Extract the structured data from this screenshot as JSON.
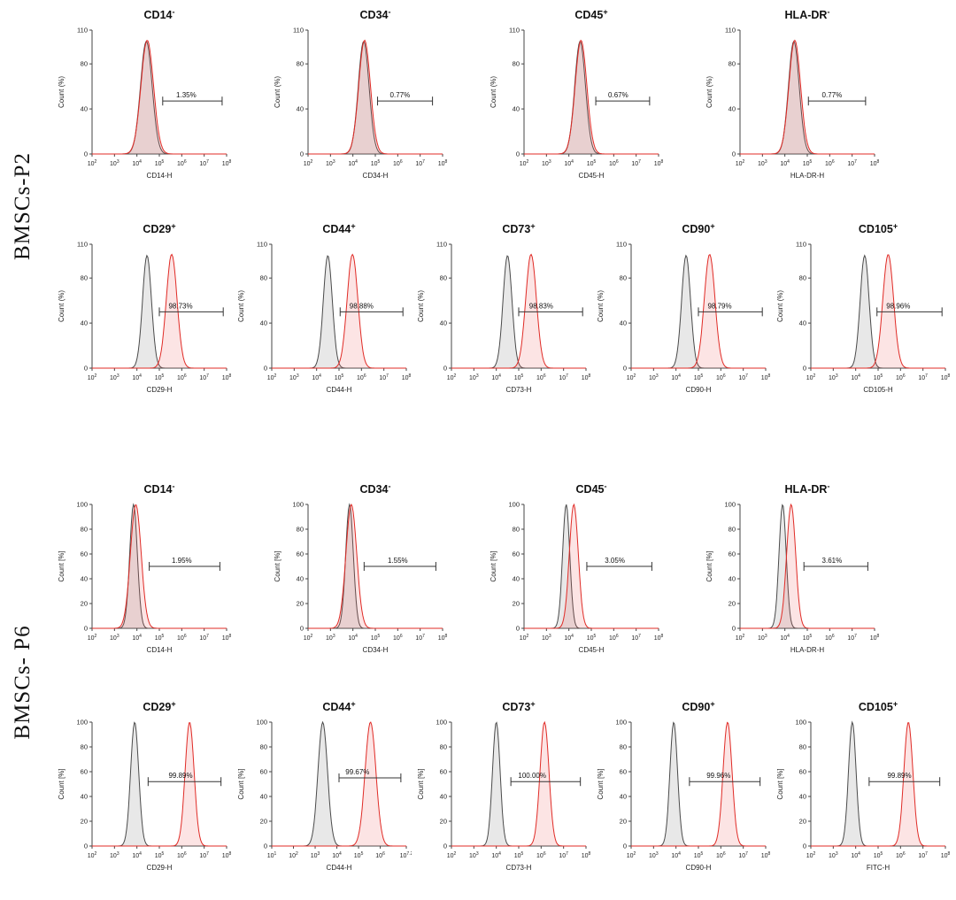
{
  "figure": {
    "group_labels": [
      "BMSCs-P2",
      "BMSCs- P6"
    ]
  },
  "chart_data": {
    "type": "histogram",
    "description": "Flow cytometry surface marker histograms of bone marrow mesenchymal stem cells at passage 2 (P2) and passage 6 (P6); x axes are log10 fluorescence intensity, y axes are normalized count percent; gray curve = control, red curve = stained sample; bracket shows gated percentage.",
    "x_scale": "log10",
    "styles": {
      "control": {
        "stroke": "#4a4a4a",
        "fill": "rgba(130,130,130,0.18)"
      },
      "sample": {
        "stroke": "#e02b26",
        "fill": "rgba(235,90,90,0.16)"
      },
      "gate": "#333333"
    },
    "groups": [
      {
        "label": "BMSCs-P2",
        "rows": [
          {
            "y_label": "Count (%)",
            "y_max": 110,
            "y_ticks": [
              0,
              40,
              80,
              110
            ],
            "x_ticks_default": [
              2,
              3,
              4,
              5,
              6,
              7,
              8
            ],
            "plots": [
              {
                "marker": "CD14",
                "sign": "-",
                "x_label": "CD14-H",
                "series": [
                  {
                    "role": "control",
                    "center": 4.42,
                    "sigma": 0.26,
                    "height": 100
                  },
                  {
                    "role": "sample",
                    "center": 4.46,
                    "sigma": 0.28,
                    "height": 101
                  }
                ],
                "gate": {
                  "from": 5.15,
                  "to": 7.8,
                  "y": 47,
                  "label_x": 6.2,
                  "label": "1.35%"
                }
              },
              {
                "marker": "CD34",
                "sign": "-",
                "x_label": "CD34-H",
                "series": [
                  {
                    "role": "control",
                    "center": 4.48,
                    "sigma": 0.24,
                    "height": 100
                  },
                  {
                    "role": "sample",
                    "center": 4.52,
                    "sigma": 0.26,
                    "height": 101
                  }
                ],
                "gate": {
                  "from": 5.1,
                  "to": 7.55,
                  "y": 47,
                  "label_x": 6.1,
                  "label": "0.77%"
                }
              },
              {
                "marker": "CD45",
                "sign": "+",
                "x_label": "CD45-H",
                "series": [
                  {
                    "role": "control",
                    "center": 4.5,
                    "sigma": 0.24,
                    "height": 100
                  },
                  {
                    "role": "sample",
                    "center": 4.54,
                    "sigma": 0.26,
                    "height": 101
                  }
                ],
                "gate": {
                  "from": 5.2,
                  "to": 7.6,
                  "y": 47,
                  "label_x": 6.2,
                  "label": "0.67%"
                }
              },
              {
                "marker": "HLA-DR",
                "sign": "-",
                "x_label": "HLA-DR-H",
                "series": [
                  {
                    "role": "control",
                    "center": 4.4,
                    "sigma": 0.24,
                    "height": 100
                  },
                  {
                    "role": "sample",
                    "center": 4.44,
                    "sigma": 0.26,
                    "height": 101
                  }
                ],
                "gate": {
                  "from": 5.05,
                  "to": 7.6,
                  "y": 47,
                  "label_x": 6.1,
                  "label": "0.77%"
                }
              }
            ]
          },
          {
            "y_label": "Count (%)",
            "y_max": 110,
            "y_ticks": [
              0,
              40,
              80,
              110
            ],
            "x_ticks_default": [
              2,
              3,
              4,
              5,
              6,
              7,
              8
            ],
            "plots": [
              {
                "marker": "CD29",
                "sign": "+",
                "x_label": "CD29-H",
                "series": [
                  {
                    "role": "control",
                    "center": 4.45,
                    "sigma": 0.2,
                    "height": 100
                  },
                  {
                    "role": "sample",
                    "center": 5.55,
                    "sigma": 0.24,
                    "height": 101
                  }
                ],
                "gate": {
                  "from": 5.0,
                  "to": 7.85,
                  "y": 50,
                  "label_x": 5.95,
                  "label": "98.73%"
                }
              },
              {
                "marker": "CD44",
                "sign": "+",
                "x_label": "CD44-H",
                "series": [
                  {
                    "role": "control",
                    "center": 4.5,
                    "sigma": 0.2,
                    "height": 100
                  },
                  {
                    "role": "sample",
                    "center": 5.6,
                    "sigma": 0.24,
                    "height": 101
                  }
                ],
                "gate": {
                  "from": 5.05,
                  "to": 7.85,
                  "y": 50,
                  "label_x": 6.0,
                  "label": "98.88%"
                }
              },
              {
                "marker": "CD73",
                "sign": "+",
                "x_label": "CD73-H",
                "series": [
                  {
                    "role": "control",
                    "center": 4.5,
                    "sigma": 0.2,
                    "height": 100
                  },
                  {
                    "role": "sample",
                    "center": 5.55,
                    "sigma": 0.24,
                    "height": 101
                  }
                ],
                "gate": {
                  "from": 5.0,
                  "to": 7.85,
                  "y": 50,
                  "label_x": 6.0,
                  "label": "98.83%"
                }
              },
              {
                "marker": "CD90",
                "sign": "+",
                "x_label": "CD90-H",
                "series": [
                  {
                    "role": "control",
                    "center": 4.45,
                    "sigma": 0.2,
                    "height": 100
                  },
                  {
                    "role": "sample",
                    "center": 5.5,
                    "sigma": 0.24,
                    "height": 101
                  }
                ],
                "gate": {
                  "from": 5.0,
                  "to": 7.85,
                  "y": 50,
                  "label_x": 5.95,
                  "label": "98.79%"
                }
              },
              {
                "marker": "CD105",
                "sign": "+",
                "x_label": "CD105-H",
                "series": [
                  {
                    "role": "control",
                    "center": 4.4,
                    "sigma": 0.2,
                    "height": 100
                  },
                  {
                    "role": "sample",
                    "center": 5.45,
                    "sigma": 0.24,
                    "height": 101
                  }
                ],
                "gate": {
                  "from": 4.95,
                  "to": 7.85,
                  "y": 50,
                  "label_x": 5.9,
                  "label": "98.96%"
                }
              }
            ]
          }
        ]
      },
      {
        "label": "BMSCs- P6",
        "rows": [
          {
            "y_label": "Count [%]",
            "y_max": 100,
            "y_ticks": [
              0,
              20,
              40,
              60,
              80,
              100
            ],
            "x_ticks_default": [
              2,
              3,
              4,
              5,
              6,
              7,
              8
            ],
            "plots": [
              {
                "marker": "CD14",
                "sign": "-",
                "x_label": "CD14-H",
                "series": [
                  {
                    "role": "control",
                    "center": 3.85,
                    "sigma": 0.17,
                    "height": 100
                  },
                  {
                    "role": "sample",
                    "center": 3.95,
                    "sigma": 0.24,
                    "height": 100
                  }
                ],
                "gate": {
                  "from": 4.55,
                  "to": 7.7,
                  "y": 50,
                  "label_x": 6.0,
                  "label": "1.95%"
                }
              },
              {
                "marker": "CD34",
                "sign": "-",
                "x_label": "CD34-H",
                "series": [
                  {
                    "role": "control",
                    "center": 3.85,
                    "sigma": 0.17,
                    "height": 100
                  },
                  {
                    "role": "sample",
                    "center": 3.93,
                    "sigma": 0.24,
                    "height": 100
                  }
                ],
                "gate": {
                  "from": 4.5,
                  "to": 7.7,
                  "y": 50,
                  "label_x": 6.0,
                  "label": "1.55%"
                }
              },
              {
                "marker": "CD45",
                "sign": "-",
                "x_label": "CD45-H",
                "series": [
                  {
                    "role": "control",
                    "center": 3.88,
                    "sigma": 0.16,
                    "height": 100
                  },
                  {
                    "role": "sample",
                    "center": 4.22,
                    "sigma": 0.2,
                    "height": 100
                  }
                ],
                "gate": {
                  "from": 4.8,
                  "to": 7.7,
                  "y": 50,
                  "label_x": 6.05,
                  "label": "3.05%"
                }
              },
              {
                "marker": "HLA-DR",
                "sign": "-",
                "x_label": "HLA-DR-H",
                "series": [
                  {
                    "role": "control",
                    "center": 3.9,
                    "sigma": 0.16,
                    "height": 100
                  },
                  {
                    "role": "sample",
                    "center": 4.28,
                    "sigma": 0.2,
                    "height": 100
                  }
                ],
                "gate": {
                  "from": 4.85,
                  "to": 7.7,
                  "y": 50,
                  "label_x": 6.1,
                  "label": "3.61%"
                }
              }
            ]
          },
          {
            "y_label": "Count [%]",
            "y_max": 100,
            "y_ticks": [
              0,
              20,
              40,
              60,
              80,
              100
            ],
            "x_ticks_default": [
              2,
              3,
              4,
              5,
              6,
              7,
              8
            ],
            "plots": [
              {
                "marker": "CD29",
                "sign": "+",
                "x_label": "CD29-H",
                "series": [
                  {
                    "role": "control",
                    "center": 3.9,
                    "sigma": 0.18,
                    "height": 100
                  },
                  {
                    "role": "sample",
                    "center": 6.35,
                    "sigma": 0.2,
                    "height": 100
                  }
                ],
                "gate": {
                  "from": 4.5,
                  "to": 7.75,
                  "y": 52,
                  "label_x": 5.95,
                  "label": "99.89%"
                }
              },
              {
                "marker": "CD44",
                "sign": "+",
                "x_label": "CD44-H",
                "x_ticks": [
                  1,
                  2,
                  3,
                  4,
                  5,
                  6,
                  7.2
                ],
                "series": [
                  {
                    "role": "control",
                    "center": 3.35,
                    "sigma": 0.22,
                    "height": 100
                  },
                  {
                    "role": "sample",
                    "center": 5.55,
                    "sigma": 0.25,
                    "height": 100
                  }
                ],
                "gate": {
                  "from": 4.1,
                  "to": 6.95,
                  "y": 55,
                  "label_x": 4.95,
                  "label": "99.67%"
                }
              },
              {
                "marker": "CD73",
                "sign": "+",
                "x_label": "CD73-H",
                "series": [
                  {
                    "role": "control",
                    "center": 4.0,
                    "sigma": 0.17,
                    "height": 100
                  },
                  {
                    "role": "sample",
                    "center": 6.15,
                    "sigma": 0.2,
                    "height": 100
                  }
                ],
                "gate": {
                  "from": 4.65,
                  "to": 7.75,
                  "y": 52,
                  "label_x": 5.6,
                  "label": "100.00%"
                }
              },
              {
                "marker": "CD90",
                "sign": "+",
                "x_label": "CD90-H",
                "series": [
                  {
                    "role": "control",
                    "center": 3.9,
                    "sigma": 0.17,
                    "height": 100
                  },
                  {
                    "role": "sample",
                    "center": 6.3,
                    "sigma": 0.2,
                    "height": 100
                  }
                ],
                "gate": {
                  "from": 4.6,
                  "to": 7.75,
                  "y": 52,
                  "label_x": 5.9,
                  "label": "99.96%"
                }
              },
              {
                "marker": "CD105",
                "sign": "+",
                "x_label": "FITC-H",
                "series": [
                  {
                    "role": "control",
                    "center": 3.85,
                    "sigma": 0.17,
                    "height": 100
                  },
                  {
                    "role": "sample",
                    "center": 6.35,
                    "sigma": 0.2,
                    "height": 100
                  }
                ],
                "gate": {
                  "from": 4.6,
                  "to": 7.75,
                  "y": 52,
                  "label_x": 5.95,
                  "label": "99.89%"
                }
              }
            ]
          }
        ]
      }
    ]
  }
}
